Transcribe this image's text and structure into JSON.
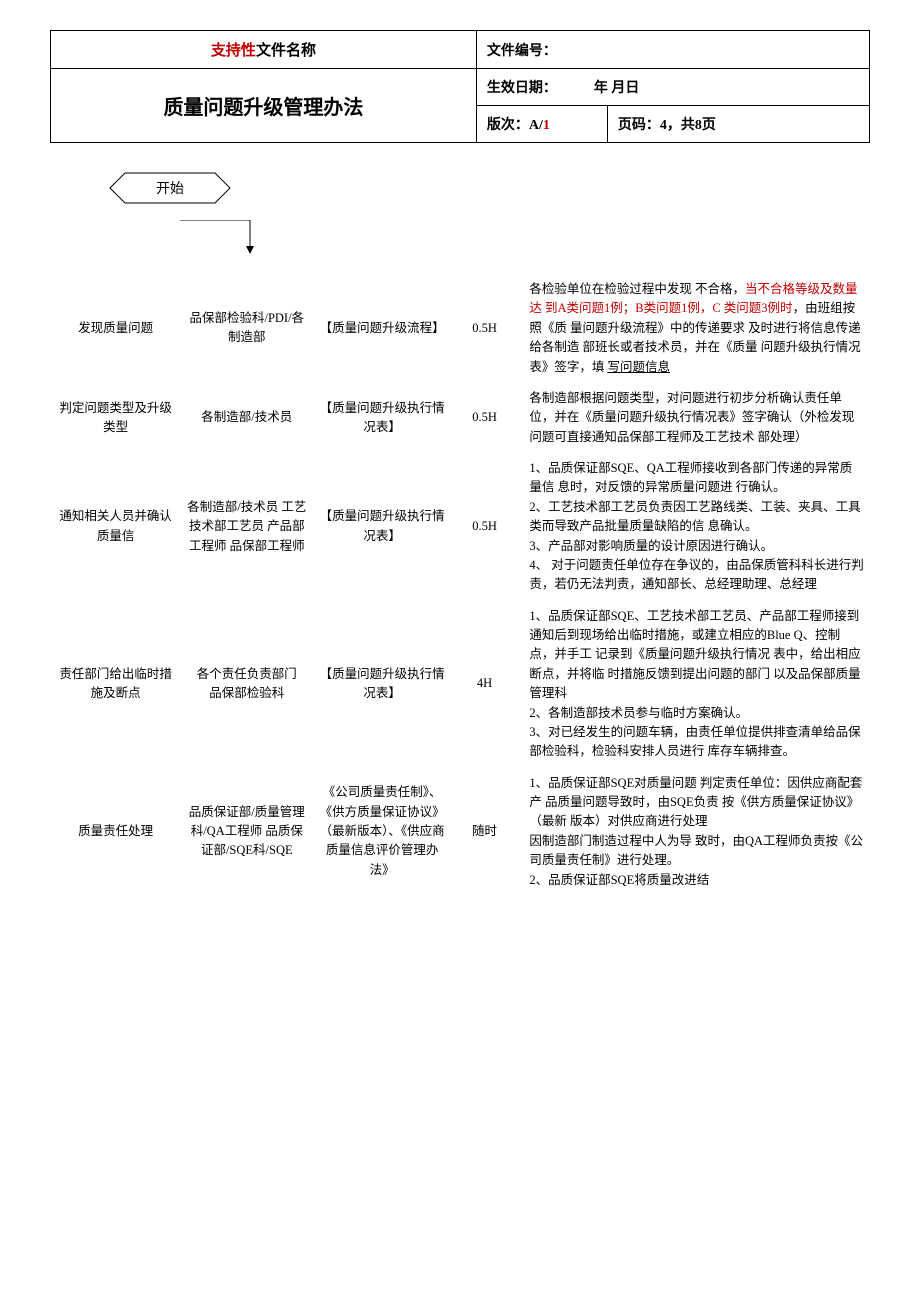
{
  "header": {
    "supportPrefix": "支持性",
    "supportSuffix": "文件名称",
    "docTitle": "质量问题升级管理办法",
    "docNoLabel": "文件编号：",
    "effectiveDateLabel": "生效日期：",
    "effectiveDateValue": "年 月日",
    "versionLabel": "版次：A/",
    "versionRed": "1",
    "pageLabel": "页码：4，共8页"
  },
  "flowStart": "开始",
  "rows": [
    {
      "step": "发现质量问题",
      "dept": "品保部检验科/PDI/各制造部",
      "doc": "【质量问题升级流程】",
      "time": "0.5H",
      "descParts": [
        {
          "text": "各检验单位在检验过程中发现 不合格，",
          "cls": ""
        },
        {
          "text": "当不合格等级及数量达 到A类问题1例；B类问题1例，C 类问题3例时",
          "cls": "desc-red"
        },
        {
          "text": "，由班组按照《质 量问题升级流程》中的传递要求 及时进行将信息传递给各制造 部班长或者技术员，并在《质量 问题升级执行情况表》签字，填 ",
          "cls": ""
        },
        {
          "text": "写问题信息",
          "cls": "desc-underline"
        }
      ]
    },
    {
      "step": "判定问题类型及升级类型",
      "dept": "各制造部/技术员",
      "doc": "【质量问题升级执行情况表】",
      "time": "0.5H",
      "descParts": [
        {
          "text": "各制造部根据问题类型，对问题进行初步分析确认责任单位，并在《质量问题升级执行情况表》签字确认（外检发现问题可直接通知品保部工程师及工艺技术 部处理）",
          "cls": ""
        }
      ]
    },
    {
      "step": "通知相关人员并确认质量信",
      "dept": "各制造部/技术员 工艺技术部工艺员 产品部工程师 品保部工程师",
      "doc": "【质量问题升级执行情况表】",
      "time": "0.5H",
      "descParts": [
        {
          "text": "1、品质保证部SQE、QA工程师接收到各部门传递的异常质量信 息时，对反馈的异常质量问题进 行确认。\n2、工艺技术部工艺员负责因工艺路线类、工装、夹具、工具类而导致产品批量质量缺陷的信 息确认。\n3、产品部对影响质量的设计原因进行确认。\n4、   对于问题责任单位存在争议的，由品保质管科科长进行判责，若仍无法判责，通知部长、总经理助理、总经理",
          "cls": ""
        }
      ]
    },
    {
      "step": "责任部门给出临时措施及断点",
      "dept": "各个责任负责部门\n品保部检验科",
      "doc": "【质量问题升级执行情况表】",
      "time": "4H",
      "descParts": [
        {
          "text": "1、品质保证部SQE、工艺技术部工艺员、产品部工程师接到通知后到现场给出临时措施，或建立相应的Blue Q、控制点，并手工 记录到《质量问题升级执行情况 表中，给出相应断点，并将临 时措施反馈到提出问题的部门 以及品保部质量管理科\n2、各制造部技术员参与临时方案确认。\n3、对已经发生的问题车辆，由责任单位提供排查清单给品保 部检验科，检验科安排人员进行 库存车辆排查。",
          "cls": ""
        }
      ]
    },
    {
      "step": "质量责任处理",
      "dept": "品质保证部/质量管理科/QA工程师 品质保证部/SQE科/SQE",
      "doc": "《公司质量责任制》、《供方质量保证协议》（最新版本）、《供应商质量信息评价管理办\n法》",
      "time": "随时",
      "descParts": [
        {
          "text": "1、品质保证部SQE对质量问题 判定责任单位：因供应商配套产 品质量问题导致时，由SQE负责 按《供方质量保证协议》（最新 版本）对供应商进行处理\n因制造部门制造过程中人为导 致时，由QA工程师负责按《公 司质量责任制》进行处理。\n2、品质保证部SQE将质量改进结",
          "cls": ""
        }
      ]
    }
  ]
}
